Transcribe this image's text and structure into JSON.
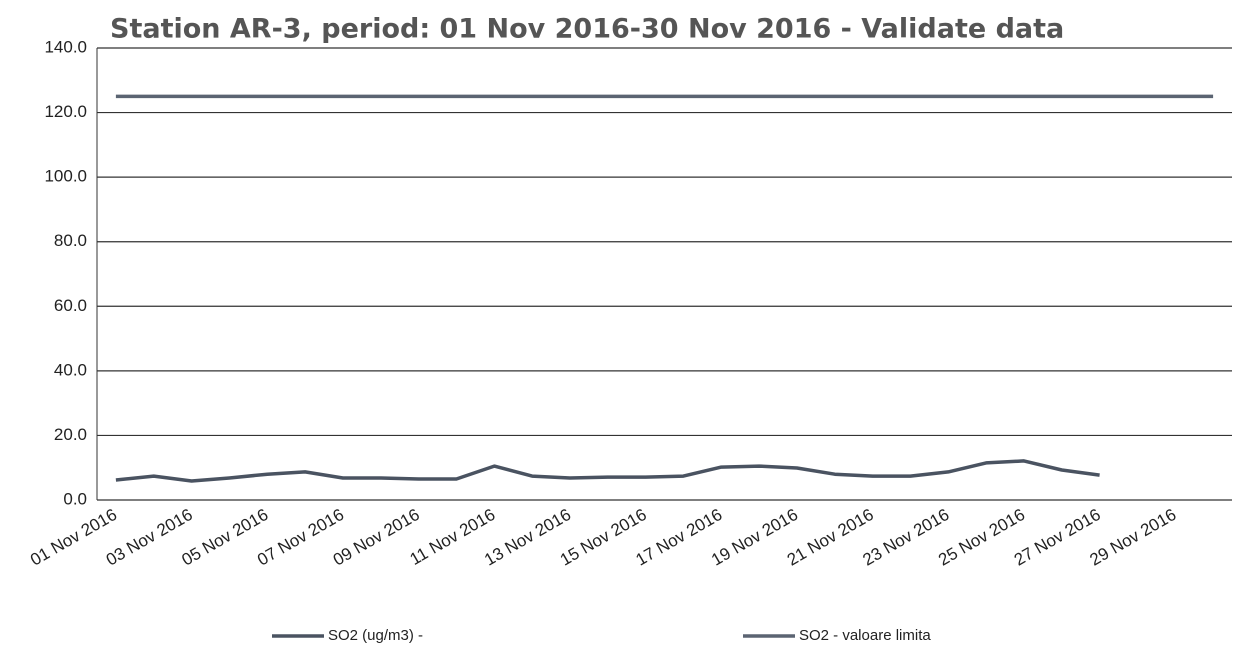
{
  "chart_data": {
    "type": "line",
    "title": "Station AR-3, period: 01 Nov 2016-30 Nov 2016 - Validate data",
    "categories": [
      "01 Nov 2016",
      null,
      "03 Nov 2016",
      null,
      "05 Nov 2016",
      null,
      "07 Nov 2016",
      null,
      "09 Nov 2016",
      null,
      "11 Nov 2016",
      null,
      "13 Nov 2016",
      null,
      "15 Nov 2016",
      null,
      "17 Nov 2016",
      null,
      "19 Nov 2016",
      null,
      "21 Nov 2016",
      null,
      "23 Nov 2016",
      null,
      "25 Nov 2016",
      null,
      "27 Nov 2016",
      null,
      "29 Nov 2016",
      null
    ],
    "series": [
      {
        "name": "SO2 (ug/m3) -",
        "color": "#4a5361",
        "values": [
          6.2,
          7.4,
          5.9,
          6.8,
          8.0,
          8.7,
          6.8,
          6.8,
          6.5,
          6.5,
          10.5,
          7.4,
          6.8,
          7.1,
          7.1,
          7.4,
          10.2,
          10.5,
          9.9,
          8.0,
          7.4,
          7.4,
          8.7,
          11.5,
          12.1,
          9.3,
          7.7,
          null,
          null,
          null
        ]
      },
      {
        "name": "SO2 - valoare limita",
        "color": "#5b6472",
        "values": [
          125,
          125,
          125,
          125,
          125,
          125,
          125,
          125,
          125,
          125,
          125,
          125,
          125,
          125,
          125,
          125,
          125,
          125,
          125,
          125,
          125,
          125,
          125,
          125,
          125,
          125,
          125,
          125,
          125,
          125
        ]
      }
    ],
    "ylim": [
      0,
      140
    ],
    "yticks": [
      {
        "value": 0,
        "label": "0.0"
      },
      {
        "value": 20,
        "label": "20.0"
      },
      {
        "value": 40,
        "label": "40.0"
      },
      {
        "value": 60,
        "label": "60.0"
      },
      {
        "value": 80,
        "label": "80.0"
      },
      {
        "value": 100,
        "label": "100.0"
      },
      {
        "value": 120,
        "label": "120.0"
      },
      {
        "value": 140,
        "label": "140.0"
      }
    ],
    "grid": true,
    "legend": "bottom"
  }
}
